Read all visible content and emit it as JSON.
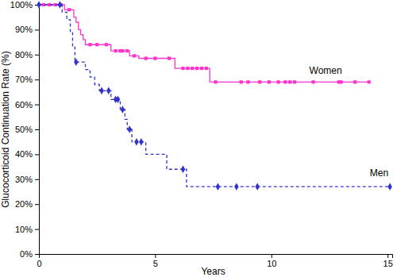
{
  "chart_data": {
    "type": "line",
    "x_label": "Years",
    "y_label": "Glucocorticoid Continuation Rate (%)",
    "xlim": [
      0,
      15.2
    ],
    "xticks": [
      0,
      5,
      10,
      15
    ],
    "ylim": [
      0,
      100
    ],
    "yticks": [
      {
        "value": 0,
        "label": "0%"
      },
      {
        "value": 10,
        "label": "10%"
      },
      {
        "value": 20,
        "label": "20%"
      },
      {
        "value": 30,
        "label": "30%"
      },
      {
        "value": 40,
        "label": "40%"
      },
      {
        "value": 50,
        "label": "50%"
      },
      {
        "value": 60,
        "label": "60%"
      },
      {
        "value": 70,
        "label": "70%"
      },
      {
        "value": 80,
        "label": "80%"
      },
      {
        "value": 90,
        "label": "90%"
      },
      {
        "value": 100,
        "label": "100%"
      }
    ],
    "grid": false,
    "series": [
      {
        "name": "Women",
        "color": "#ff33cc",
        "line_style": "solid",
        "marker": "square",
        "x": [
          0,
          1.1,
          1.5,
          1.6,
          1.7,
          1.8,
          1.9,
          2.0,
          3.1,
          3.9,
          4.3,
          5.85,
          7.35,
          14.2
        ],
        "values": [
          100,
          98,
          95,
          93,
          90,
          88,
          86,
          84,
          81.5,
          79.5,
          78.5,
          74.5,
          69,
          69
        ],
        "censored_x": [
          0.2,
          0.45,
          0.7,
          0.95,
          1.3,
          2.2,
          2.5,
          2.9,
          3.3,
          3.5,
          3.6,
          3.8,
          4.1,
          4.6,
          5.0,
          5.6,
          6.2,
          6.4,
          6.6,
          6.8,
          7.0,
          7.2,
          7.6,
          8.7,
          9.0,
          9.5,
          9.9,
          10.3,
          10.6,
          10.8,
          11.0,
          11.8,
          12.9,
          13.0,
          13.6,
          14.2
        ],
        "censored_values": [
          100,
          100,
          100,
          100,
          98,
          84,
          84,
          84,
          81.5,
          81.5,
          81.5,
          81.5,
          79.5,
          78.5,
          78.5,
          78.5,
          74.5,
          74.5,
          74.5,
          74.5,
          74.5,
          74.5,
          69,
          69,
          69,
          69,
          69,
          69,
          69,
          69,
          69,
          69,
          69,
          69,
          69,
          69
        ]
      },
      {
        "name": "Men",
        "color": "#3333cc",
        "line_style": "dashed",
        "marker": "diamond",
        "x": [
          0,
          1.0,
          1.2,
          1.35,
          1.45,
          1.55,
          2.0,
          2.2,
          2.4,
          2.6,
          3.1,
          3.5,
          3.7,
          3.8,
          4.0,
          4.6,
          5.5,
          6.35,
          15.1
        ],
        "values": [
          100,
          97,
          94,
          89,
          83,
          77,
          74,
          71,
          68,
          65.5,
          62,
          58,
          54,
          50,
          45,
          40,
          34,
          27,
          27
        ],
        "censored_x": [
          0,
          0.9,
          1.6,
          2.7,
          3.0,
          3.3,
          3.4,
          3.6,
          3.9,
          4.2,
          4.4,
          6.2,
          7.7,
          8.5,
          9.4,
          15.1
        ],
        "censored_values": [
          100,
          100,
          77,
          65.5,
          65.5,
          62,
          62,
          58,
          50,
          45,
          45,
          34,
          27,
          27,
          27,
          27
        ]
      }
    ]
  }
}
